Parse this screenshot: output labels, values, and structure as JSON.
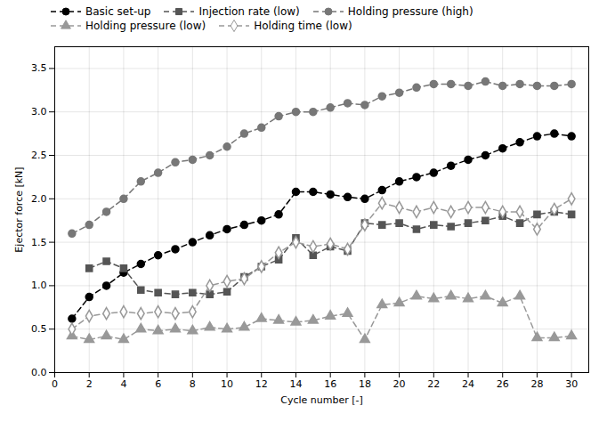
{
  "chart_data": {
    "type": "line",
    "xlabel": "Cycle number [-]",
    "ylabel": "Ejector force [kN]",
    "xlim": [
      0,
      31
    ],
    "ylim": [
      0.0,
      3.75
    ],
    "xticks": [
      0,
      2,
      4,
      6,
      8,
      10,
      12,
      14,
      16,
      18,
      20,
      22,
      24,
      26,
      28,
      30
    ],
    "yticks": [
      {
        "value": 0,
        "label": "0.0"
      },
      0.5,
      {
        "value": 1,
        "label": "1.0"
      },
      1.5,
      {
        "value": 2,
        "label": "2.0"
      },
      2.5,
      {
        "value": 3,
        "label": "3.0"
      },
      3.5
    ],
    "grid": true,
    "legend": "upper left",
    "x": [
      1,
      2,
      3,
      4,
      5,
      6,
      7,
      8,
      9,
      10,
      11,
      12,
      13,
      14,
      15,
      16,
      17,
      18,
      19,
      20,
      21,
      22,
      23,
      24,
      25,
      26,
      27,
      28,
      29,
      30
    ],
    "series": [
      {
        "name": "Basic set-up",
        "color": "#000000",
        "marker": "circle",
        "line_style": "dashed",
        "values": [
          0.62,
          0.87,
          1.0,
          1.15,
          1.25,
          1.35,
          1.42,
          1.5,
          1.58,
          1.65,
          1.7,
          1.75,
          1.82,
          2.08,
          2.08,
          2.05,
          2.02,
          2.0,
          2.1,
          2.2,
          2.25,
          2.3,
          2.38,
          2.45,
          2.5,
          2.58,
          2.65,
          2.72,
          2.75,
          2.72
        ]
      },
      {
        "name": "Injection rate (low)",
        "color": "#555555",
        "marker": "square",
        "line_style": "dashed",
        "values": [
          null,
          1.2,
          1.28,
          1.2,
          0.95,
          0.92,
          0.9,
          0.92,
          0.9,
          0.93,
          1.1,
          1.22,
          1.3,
          1.55,
          1.35,
          1.45,
          1.4,
          1.72,
          1.7,
          1.72,
          1.65,
          1.7,
          1.68,
          1.72,
          1.75,
          1.8,
          1.72,
          1.82,
          1.85,
          1.82
        ]
      },
      {
        "name": "Holding pressure (high)",
        "color": "#777777",
        "marker": "circle",
        "line_style": "dashed",
        "values": [
          1.6,
          1.7,
          1.85,
          2.0,
          2.2,
          2.3,
          2.42,
          2.45,
          2.5,
          2.6,
          2.75,
          2.82,
          2.95,
          3.0,
          3.0,
          3.05,
          3.1,
          3.08,
          3.18,
          3.22,
          3.28,
          3.32,
          3.32,
          3.3,
          3.35,
          3.3,
          3.32,
          3.3,
          3.3,
          3.32
        ]
      },
      {
        "name": "Holding pressure (low)",
        "color": "#999999",
        "marker": "triangle",
        "line_style": "dashed",
        "values": [
          0.42,
          0.38,
          0.42,
          0.38,
          0.5,
          0.48,
          0.5,
          0.48,
          0.52,
          0.5,
          0.52,
          0.62,
          0.6,
          0.58,
          0.6,
          0.65,
          0.68,
          0.38,
          0.78,
          0.8,
          0.88,
          0.85,
          0.88,
          0.85,
          0.88,
          0.8,
          0.88,
          0.4,
          0.4,
          0.42
        ]
      },
      {
        "name": "Holding time (low)",
        "color": "#999999",
        "marker": "diamond-open",
        "line_style": "dashed",
        "values": [
          0.5,
          0.65,
          0.68,
          0.7,
          0.68,
          0.7,
          0.68,
          0.7,
          1.0,
          1.05,
          1.08,
          1.22,
          1.38,
          1.5,
          1.45,
          1.48,
          1.42,
          1.7,
          1.95,
          1.9,
          1.85,
          1.9,
          1.85,
          1.9,
          1.9,
          1.85,
          1.85,
          1.65,
          1.88,
          2.0
        ]
      }
    ]
  }
}
